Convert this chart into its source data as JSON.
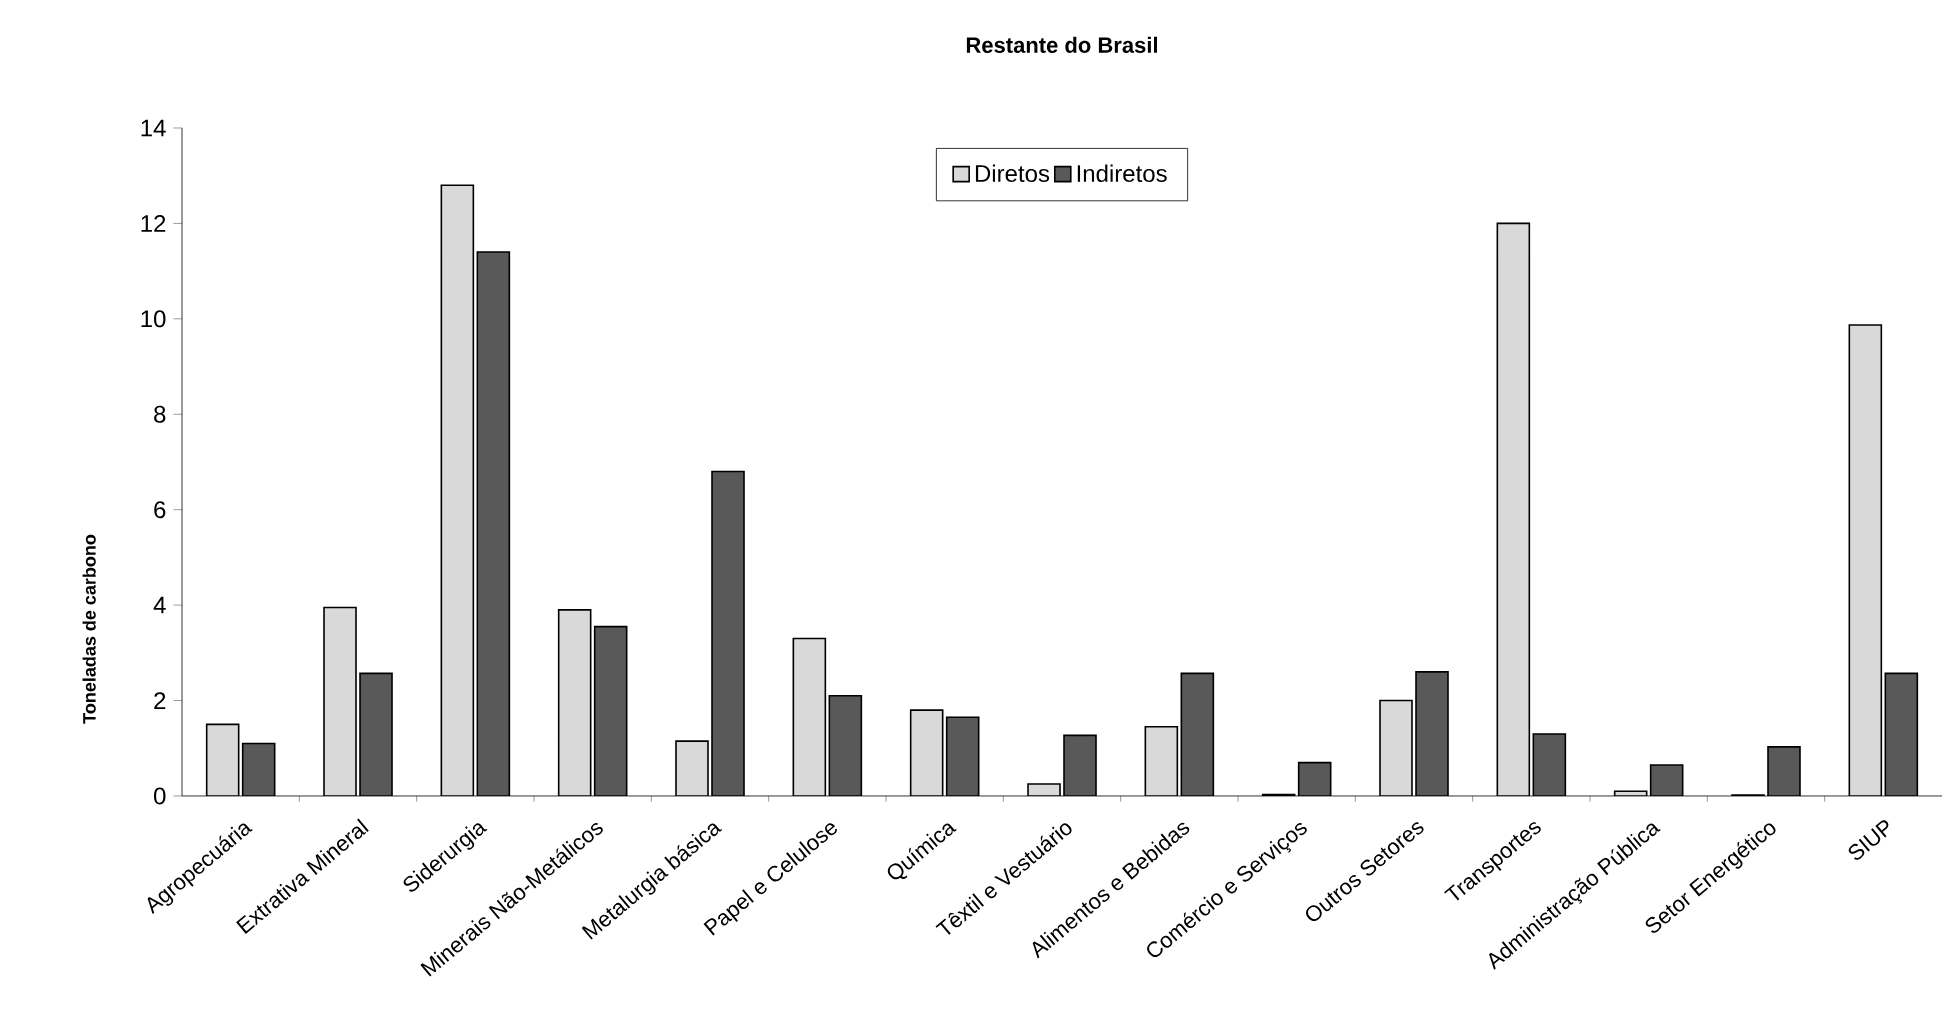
{
  "chart_data": {
    "type": "bar",
    "title": "Restante do Brasil",
    "ylabel": "Toneladas de carbono",
    "categories": [
      "Agropecuária",
      "Extrativa Mineral",
      "Siderurgia",
      "Minerais Não-Metálicos",
      "Metalurgia básica",
      "Papel e Celulose",
      "Química",
      "Têxtil e Vestuário",
      "Alimentos e Bebidas",
      "Comércio e Serviços",
      "Outros Setores",
      "Transportes",
      "Administração Pública",
      "Setor Energético",
      "SIUP"
    ],
    "series": [
      {
        "name": "Diretos",
        "color": "#d9d9d9",
        "values": [
          1.5,
          3.95,
          12.8,
          3.9,
          1.15,
          3.3,
          1.8,
          0.25,
          1.45,
          0.03,
          2.0,
          12.0,
          0.1,
          0.02,
          9.87
        ]
      },
      {
        "name": "Indiretos",
        "color": "#595959",
        "values": [
          1.1,
          2.57,
          11.4,
          3.55,
          6.8,
          2.1,
          1.65,
          1.27,
          2.57,
          0.7,
          2.6,
          1.3,
          0.65,
          1.03,
          2.57
        ]
      }
    ],
    "ylim": [
      0,
      14
    ],
    "yticks": [
      0,
      2,
      4,
      6,
      8,
      10,
      12,
      14
    ],
    "grid": false,
    "legend": "top"
  }
}
